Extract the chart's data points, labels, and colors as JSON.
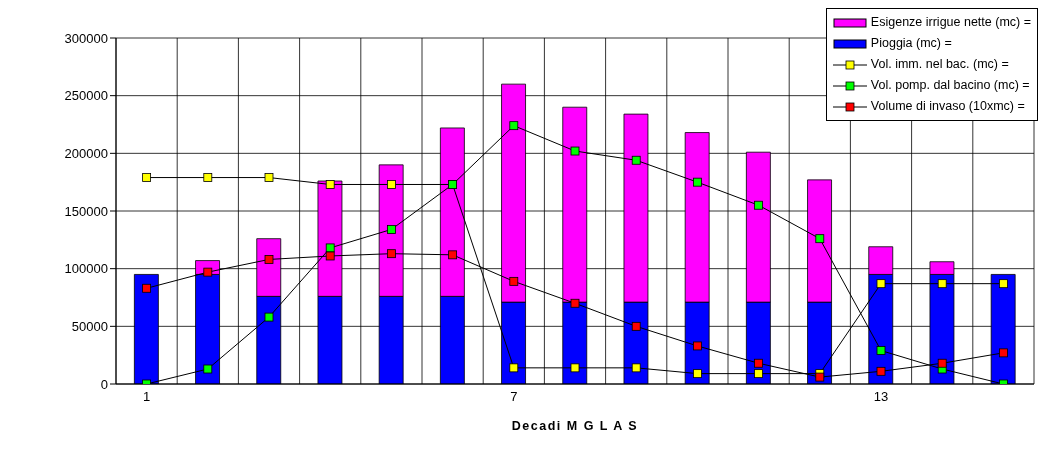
{
  "chart_data": {
    "type": "bar",
    "xlabel": "Decadi M G L A S",
    "categories": [
      "1",
      null,
      null,
      null,
      null,
      null,
      "7",
      null,
      null,
      null,
      null,
      null,
      "13",
      null,
      null
    ],
    "stacked": true,
    "grid": true,
    "legend": "top right",
    "marker": "square",
    "line_style": "solid",
    "ylim": [
      0,
      300000
    ],
    "yticks": [
      0,
      50000,
      100000,
      150000,
      200000,
      250000,
      300000
    ],
    "series": [
      {
        "name": "Pioggia (mc) =",
        "color": "#0000ff",
        "values": [
          95000,
          95000,
          76000,
          76000,
          76000,
          76000,
          71000,
          71000,
          71000,
          71000,
          71000,
          71000,
          95000,
          95000,
          95000
        ]
      },
      {
        "name": "Esigenze irrigue nette (mc) =",
        "color": "#ff00ff",
        "values": [
          0,
          12000,
          50000,
          100000,
          114000,
          146000,
          189000,
          169000,
          163000,
          147000,
          130000,
          106000,
          24000,
          11000,
          0
        ]
      },
      {
        "name": "Vol. imm. nel bac. (mc) =",
        "type": "line",
        "color": "#ffff00",
        "values": [
          179000,
          179000,
          179000,
          173000,
          173000,
          173000,
          14000,
          14000,
          14000,
          9000,
          9000,
          9000,
          87000,
          87000,
          87000
        ]
      },
      {
        "name": "Vol. pomp. dal bacino (mc) =",
        "type": "line",
        "color": "#00ff00",
        "values": [
          0,
          13000,
          58000,
          118000,
          134000,
          173000,
          224000,
          202000,
          194000,
          175000,
          155000,
          126000,
          29000,
          13000,
          0
        ]
      },
      {
        "name": "Volume di invaso (10xmc) =",
        "type": "line",
        "color": "#ff0000",
        "values": [
          83000,
          97000,
          108000,
          111000,
          113000,
          112000,
          89000,
          70000,
          50000,
          33000,
          18000,
          6000,
          11000,
          18000,
          27000
        ]
      }
    ]
  }
}
